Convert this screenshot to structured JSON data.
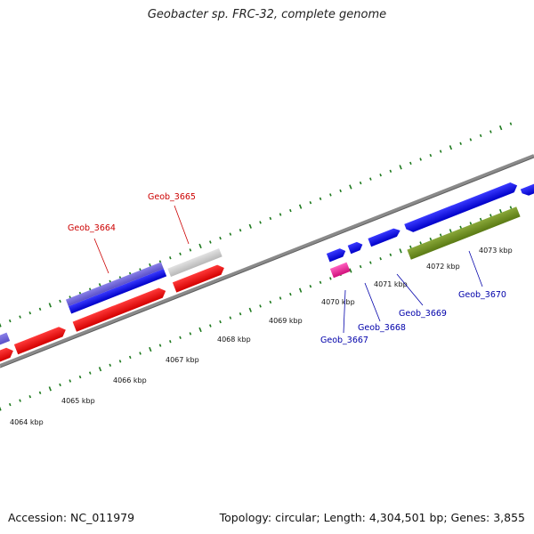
{
  "title": "Geobacter sp. FRC-32, complete genome",
  "footer": {
    "accession": "Accession: NC_011979",
    "summary": "Topology: circular; Length: 4,304,501 bp; Genes: 3,855"
  },
  "colors": {
    "backbone": "#8a8a8a",
    "ticks": "#1e7a1e",
    "label_red": "#cc0000",
    "label_blue": "#0000aa"
  },
  "scale": {
    "unit": "kbp",
    "labels": [
      "4064 kbp",
      "4065 kbp",
      "4066 kbp",
      "4067 kbp",
      "4068 kbp",
      "4069 kbp",
      "4070 kbp",
      "4071 kbp",
      "4072 kbp",
      "4073 kbp"
    ]
  },
  "genes": [
    {
      "name": "Geob_3664",
      "color": "red"
    },
    {
      "name": "Geob_3665",
      "color": "red"
    },
    {
      "name": "Geob_3667",
      "color": "blue"
    },
    {
      "name": "Geob_3668",
      "color": "blue"
    },
    {
      "name": "Geob_3669",
      "color": "blue"
    },
    {
      "name": "Geob_3670",
      "color": "blue"
    }
  ]
}
